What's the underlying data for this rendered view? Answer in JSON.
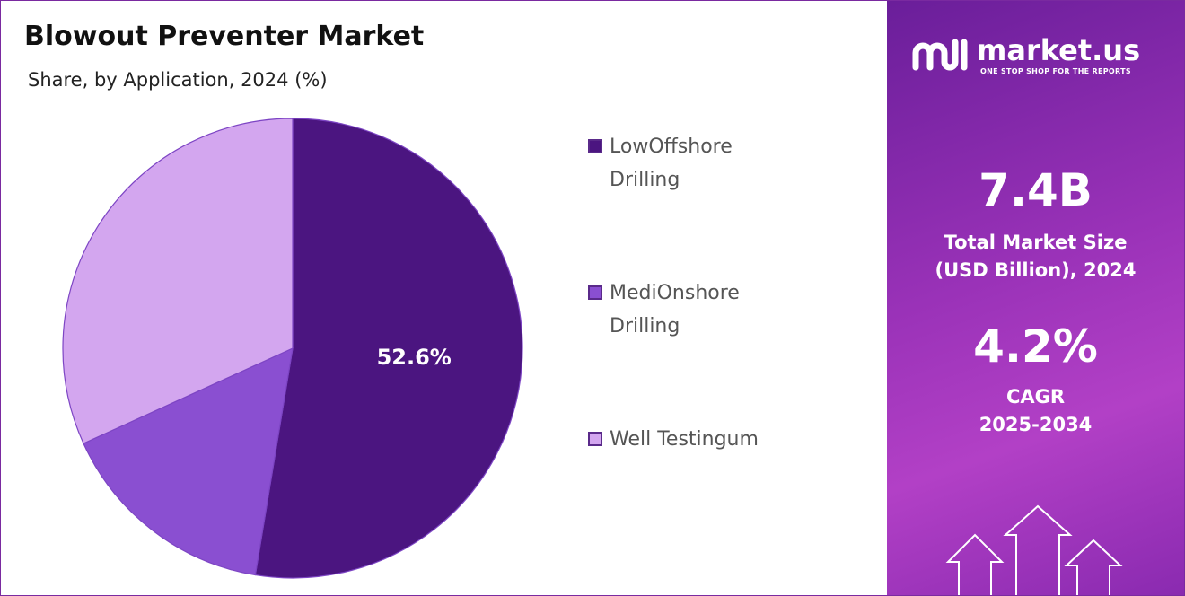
{
  "chart_data": {
    "type": "pie",
    "title": "Blowout Preventer Market",
    "subtitle": "Share, by Application, 2024 (%)",
    "categories": [
      "LowOffshore Drilling",
      "MediOnshore Drilling",
      "Well Testingum"
    ],
    "values": [
      52.6,
      15.6,
      31.8
    ],
    "value_labels": [
      "52.6%",
      null,
      null
    ],
    "colors": [
      "#4b1580",
      "#8a4fd1",
      "#d3a6ef"
    ],
    "legend": "right"
  },
  "brand": {
    "name": "market.us",
    "tagline": "ONE STOP SHOP FOR THE REPORTS"
  },
  "stats": [
    {
      "value": "7.4B",
      "lines": [
        "Total Market Size",
        "(USD Billion), 2024"
      ]
    },
    {
      "value": "4.2%",
      "lines": [
        "CAGR",
        "2025-2034"
      ]
    }
  ]
}
